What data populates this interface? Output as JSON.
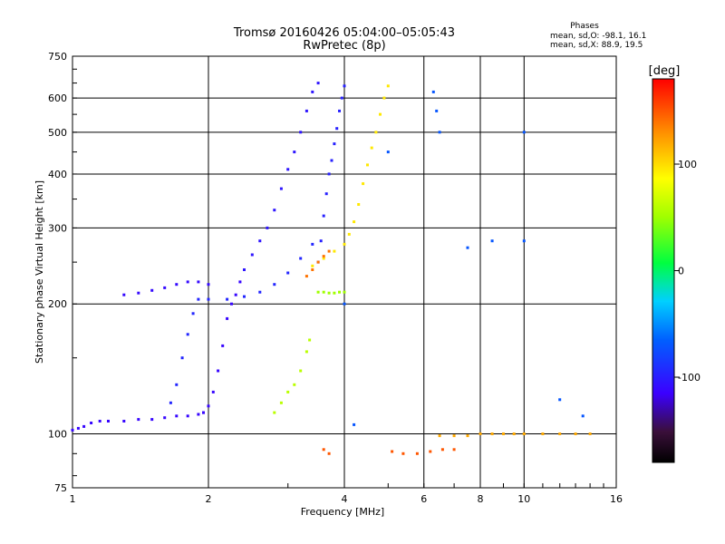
{
  "title_line1": "Tromsø 20160426 05:04:00–05:05:43",
  "title_line2": "RwPretec (8p)",
  "phases": {
    "heading": "Phases",
    "o_line": "mean, sd,O: -98.1, 16.1",
    "x_line": "mean, sd,X:  88.9, 19.5"
  },
  "colorbar": {
    "unit_label": "[deg]",
    "ticks": [
      {
        "value": 100,
        "label": "100"
      },
      {
        "value": 0,
        "label": "0"
      },
      {
        "value": -100,
        "label": "-100"
      }
    ],
    "range": [
      -180,
      180
    ]
  },
  "chart_data": {
    "type": "scatter",
    "xlabel": "Frequency [MHz]",
    "ylabel": "Stationary phase Virtual Height [km]",
    "x_scale": "log",
    "y_scale": "log",
    "xlim": [
      1,
      16
    ],
    "ylim": [
      75,
      750
    ],
    "x_ticks": [
      {
        "value": 1,
        "label": "1"
      },
      {
        "value": 2,
        "label": "2"
      },
      {
        "value": 4,
        "label": "4"
      },
      {
        "value": 6,
        "label": "6"
      },
      {
        "value": 8,
        "label": "8"
      },
      {
        "value": 10,
        "label": "10"
      },
      {
        "value": 16,
        "label": "16"
      }
    ],
    "y_ticks": [
      {
        "value": 75,
        "label": "75"
      },
      {
        "value": 100,
        "label": "100"
      },
      {
        "value": 200,
        "label": "200"
      },
      {
        "value": 300,
        "label": "300"
      },
      {
        "value": 400,
        "label": "400"
      },
      {
        "value": 500,
        "label": "500"
      },
      {
        "value": 600,
        "label": "600"
      },
      {
        "value": 750,
        "label": "750"
      }
    ],
    "grid": true,
    "colorscale": "phase-rainbow",
    "traces": [
      {
        "id": "e-layer-o",
        "phase": -112,
        "points": [
          [
            1.0,
            102
          ],
          [
            1.03,
            103
          ],
          [
            1.06,
            104
          ],
          [
            1.1,
            106
          ],
          [
            1.15,
            107
          ],
          [
            1.2,
            107
          ],
          [
            1.3,
            107
          ],
          [
            1.4,
            108
          ],
          [
            1.5,
            108
          ],
          [
            1.6,
            109
          ],
          [
            1.7,
            110
          ],
          [
            1.8,
            110
          ],
          [
            1.9,
            111
          ],
          [
            1.95,
            112
          ]
        ]
      },
      {
        "id": "f-cusp-o",
        "phase": -112,
        "points": [
          [
            1.95,
            112
          ],
          [
            2.0,
            116
          ],
          [
            2.05,
            125
          ],
          [
            2.1,
            140
          ],
          [
            2.15,
            160
          ],
          [
            2.2,
            185
          ],
          [
            2.25,
            200
          ],
          [
            2.3,
            210
          ],
          [
            2.35,
            225
          ],
          [
            2.4,
            240
          ]
        ]
      },
      {
        "id": "f2-trace-o",
        "phase": -104,
        "points": [
          [
            2.4,
            240
          ],
          [
            2.5,
            260
          ],
          [
            2.6,
            280
          ],
          [
            2.7,
            300
          ],
          [
            2.8,
            330
          ],
          [
            2.9,
            370
          ],
          [
            3.0,
            410
          ],
          [
            3.1,
            450
          ],
          [
            3.2,
            500
          ],
          [
            3.3,
            560
          ],
          [
            3.4,
            620
          ],
          [
            3.5,
            650
          ]
        ]
      },
      {
        "id": "f2-upper-o",
        "phase": -98,
        "points": [
          [
            3.5,
            250
          ],
          [
            3.55,
            280
          ],
          [
            3.6,
            320
          ],
          [
            3.65,
            360
          ],
          [
            3.7,
            400
          ],
          [
            3.75,
            430
          ],
          [
            3.8,
            470
          ],
          [
            3.85,
            510
          ],
          [
            3.9,
            560
          ],
          [
            3.95,
            600
          ],
          [
            4.0,
            640
          ]
        ]
      },
      {
        "id": "spread-o",
        "phase": -95,
        "points": [
          [
            1.65,
            118
          ],
          [
            1.7,
            130
          ],
          [
            1.75,
            150
          ],
          [
            1.8,
            170
          ],
          [
            1.85,
            190
          ],
          [
            1.9,
            205
          ],
          [
            2.0,
            205
          ],
          [
            2.2,
            205
          ],
          [
            2.4,
            208
          ],
          [
            2.6,
            213
          ],
          [
            2.8,
            222
          ],
          [
            3.0,
            236
          ],
          [
            3.2,
            255
          ],
          [
            3.4,
            275
          ]
        ]
      },
      {
        "id": "f-layer-o-low",
        "phase": -110,
        "points": [
          [
            1.3,
            210
          ],
          [
            1.4,
            212
          ],
          [
            1.5,
            215
          ],
          [
            1.6,
            218
          ],
          [
            1.7,
            222
          ],
          [
            1.8,
            225
          ],
          [
            1.9,
            225
          ],
          [
            2.0,
            222
          ]
        ]
      },
      {
        "id": "f2-x",
        "phase": 95,
        "points": [
          [
            3.4,
            245
          ],
          [
            3.6,
            255
          ],
          [
            3.8,
            265
          ],
          [
            4.0,
            275
          ],
          [
            4.1,
            290
          ],
          [
            4.2,
            310
          ],
          [
            4.3,
            340
          ],
          [
            4.4,
            380
          ],
          [
            4.5,
            420
          ],
          [
            4.6,
            460
          ],
          [
            4.7,
            500
          ],
          [
            4.8,
            550
          ],
          [
            4.9,
            600
          ],
          [
            5.0,
            640
          ]
        ]
      },
      {
        "id": "f-layer-x",
        "phase": 140,
        "points": [
          [
            3.3,
            232
          ],
          [
            3.4,
            240
          ],
          [
            3.5,
            250
          ],
          [
            3.6,
            258
          ],
          [
            3.7,
            265
          ]
        ]
      },
      {
        "id": "x-low-trace",
        "phase": 60,
        "points": [
          [
            2.8,
            112
          ],
          [
            2.9,
            118
          ],
          [
            3.0,
            125
          ],
          [
            3.1,
            130
          ],
          [
            3.2,
            140
          ],
          [
            3.3,
            155
          ],
          [
            3.35,
            165
          ]
        ]
      },
      {
        "id": "x-band-210",
        "phase": 50,
        "points": [
          [
            3.5,
            213
          ],
          [
            3.6,
            213
          ],
          [
            3.7,
            212
          ],
          [
            3.8,
            212
          ],
          [
            3.9,
            213
          ],
          [
            4.0,
            213
          ]
        ]
      },
      {
        "id": "e-echo-100",
        "phase": 120,
        "points": [
          [
            6.5,
            99
          ],
          [
            7.0,
            99
          ],
          [
            7.5,
            99
          ],
          [
            8.0,
            100
          ],
          [
            8.5,
            100
          ],
          [
            9.0,
            100
          ],
          [
            9.5,
            100
          ],
          [
            10.0,
            100
          ],
          [
            11.0,
            100
          ],
          [
            12.0,
            100
          ],
          [
            13.0,
            100
          ],
          [
            14.0,
            100
          ]
        ]
      },
      {
        "id": "low-echoes-90",
        "phase": 150,
        "points": [
          [
            3.6,
            92
          ],
          [
            3.7,
            90
          ],
          [
            5.1,
            91
          ],
          [
            5.4,
            90
          ],
          [
            5.8,
            90
          ],
          [
            6.2,
            91
          ],
          [
            6.6,
            92
          ],
          [
            7.0,
            92
          ]
        ]
      },
      {
        "id": "scattered",
        "phase": -70,
        "points": [
          [
            6.3,
            620
          ],
          [
            6.4,
            560
          ],
          [
            6.5,
            500
          ],
          [
            10.0,
            500
          ],
          [
            10.0,
            280
          ],
          [
            4.2,
            105
          ],
          [
            4.0,
            200
          ],
          [
            5.0,
            450
          ],
          [
            8.5,
            280
          ],
          [
            12.0,
            120
          ],
          [
            13.5,
            110
          ],
          [
            7.5,
            270
          ]
        ]
      }
    ]
  }
}
